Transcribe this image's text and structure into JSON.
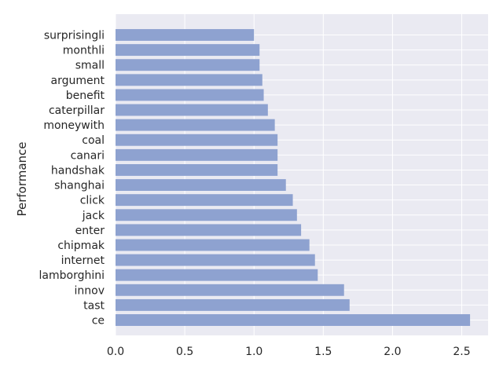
{
  "chart_data": {
    "type": "bar",
    "orientation": "horizontal",
    "title": "",
    "xlabel": "",
    "ylabel": "Performance",
    "categories": [
      "surprisingli",
      "monthli",
      "small",
      "argument",
      "benefit",
      "caterpillar",
      "moneywith",
      "coal",
      "canari",
      "handshak",
      "shanghai",
      "click",
      "jack",
      "enter",
      "chipmak",
      "internet",
      "lamborghini",
      "innov",
      "tast",
      "ce"
    ],
    "values": [
      1.0,
      1.04,
      1.04,
      1.06,
      1.07,
      1.1,
      1.15,
      1.17,
      1.17,
      1.17,
      1.23,
      1.28,
      1.31,
      1.34,
      1.4,
      1.44,
      1.46,
      1.65,
      1.69,
      2.56
    ],
    "xlim": [
      0,
      2.69
    ],
    "xticks": [
      0.0,
      0.5,
      1.0,
      1.5,
      2.0,
      2.5
    ],
    "grid": true,
    "colors": {
      "bar": "#8ea2d0",
      "background": "#eaeaf2",
      "grid": "#ffffff",
      "text": "#262626"
    }
  }
}
